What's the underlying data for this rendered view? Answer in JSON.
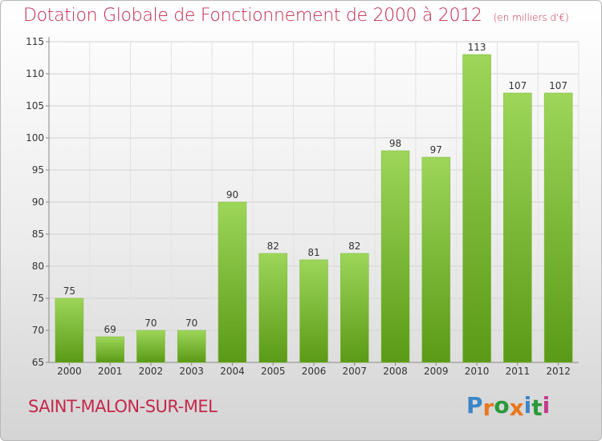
{
  "header": {
    "title": "Dotation Globale de Fonctionnement de 2000 à 2012",
    "subtitle": "(en milliers d'€)"
  },
  "footer": {
    "commune": "SAINT-MALON-SUR-MEL",
    "logo": "Proxiti"
  },
  "colors": {
    "title": "#c4284a",
    "bar_light": "#9dd65a",
    "bar_dark": "#5a9a16",
    "logo_letters": [
      "#3a86c8",
      "#e8771e",
      "#2a9a3a",
      "#e8771e",
      "#3a86c8",
      "#2a9a3a",
      "#c43b8c"
    ]
  },
  "chart_data": {
    "type": "bar",
    "title": "Dotation Globale de Fonctionnement de 2000 à 2012",
    "subtitle": "(en milliers d'€)",
    "categories": [
      "2000",
      "2001",
      "2002",
      "2003",
      "2004",
      "2005",
      "2006",
      "2007",
      "2008",
      "2009",
      "2010",
      "2011",
      "2012"
    ],
    "values": [
      75,
      69,
      70,
      70,
      90,
      82,
      81,
      82,
      98,
      97,
      113,
      107,
      107
    ],
    "value_labels": [
      "75",
      "69",
      "70",
      "70",
      "90",
      "82",
      "81",
      "82",
      "98",
      "97",
      "113",
      "107",
      "107"
    ],
    "ylim": [
      65,
      115
    ],
    "yticks": [
      65,
      70,
      75,
      80,
      85,
      90,
      95,
      100,
      105,
      110,
      115
    ],
    "ytick_labels": [
      "65",
      "70",
      "75",
      "80",
      "85",
      "90",
      "95",
      "100",
      "105",
      "110",
      "115"
    ],
    "xlabel": "",
    "ylabel": "",
    "grid": true,
    "legend": "none"
  }
}
